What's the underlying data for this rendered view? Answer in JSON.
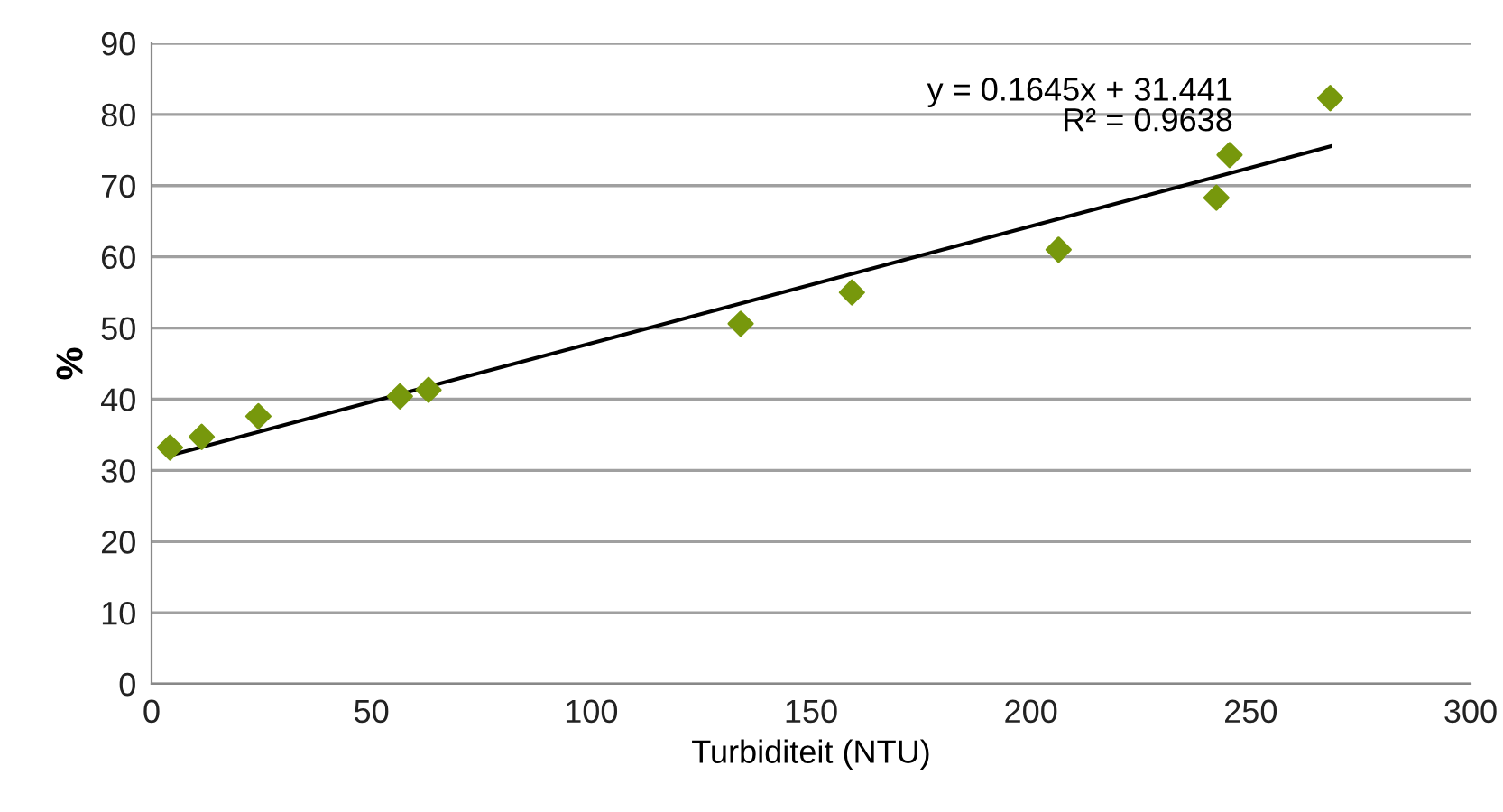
{
  "chart_data": {
    "type": "scatter",
    "xlabel": "Turbiditeit (NTU)",
    "ylabel": "%",
    "series": [
      {
        "color": "#77980c",
        "marker": "diamond",
        "x": [
          4.2,
          11.4,
          24.3,
          56.5,
          63.0,
          134.0,
          159.3,
          206.3,
          242.2,
          245.2,
          268.1
        ],
        "values": [
          33.2,
          34.7,
          37.6,
          40.4,
          41.3,
          50.6,
          55.0,
          61.0,
          68.3,
          74.3,
          82.3
        ]
      },
      {
        "type": "line",
        "color": "#000000",
        "marker": "none",
        "line_style": "solid",
        "x": [
          4.2,
          268.1
        ],
        "values": [
          32.1,
          75.5
        ]
      }
    ],
    "annotations": [
      "y = 0.1645x + 31.441\nR² = 0.9638"
    ],
    "xlim": [
      0,
      300
    ],
    "xticks": [
      0,
      50,
      100,
      150,
      200,
      250,
      300
    ],
    "ylim": [
      0,
      90
    ],
    "yticks": [
      0,
      10,
      20,
      30,
      40,
      50,
      60,
      70,
      80,
      90
    ],
    "grid": "y",
    "legend": false
  }
}
